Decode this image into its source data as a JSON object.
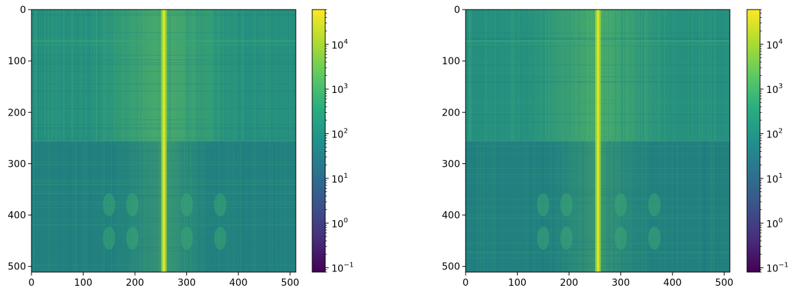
{
  "chart_data": [
    {
      "type": "heatmap",
      "title": "",
      "xlabel": "",
      "ylabel": "",
      "colormap": "viridis",
      "color_scale": "log",
      "image_shape": [
        512,
        512
      ],
      "xlim": [
        0,
        511
      ],
      "ylim": [
        511,
        0
      ],
      "x_ticks": [
        0,
        100,
        200,
        300,
        400,
        500
      ],
      "x_tick_labels": [
        "0",
        "100",
        "200",
        "300",
        "400",
        "500"
      ],
      "y_ticks": [
        0,
        100,
        200,
        300,
        400,
        500
      ],
      "y_tick_labels": [
        "0",
        "100",
        "200",
        "300",
        "400",
        "500"
      ],
      "bright_column_x": 256,
      "step_row_y": 256,
      "colorbar": {
        "scale": "log",
        "range": [
          0.08,
          60000
        ],
        "ticks": [
          {
            "value": 0.1,
            "base": "10",
            "exp": "−1"
          },
          {
            "value": 1,
            "base": "10",
            "exp": "0"
          },
          {
            "value": 10,
            "base": "10",
            "exp": "1"
          },
          {
            "value": 100,
            "base": "10",
            "exp": "2"
          },
          {
            "value": 1000,
            "base": "10",
            "exp": "3"
          },
          {
            "value": 10000,
            "base": "10",
            "exp": "4"
          }
        ]
      }
    },
    {
      "type": "heatmap",
      "title": "",
      "xlabel": "",
      "ylabel": "",
      "colormap": "viridis",
      "color_scale": "log",
      "image_shape": [
        512,
        512
      ],
      "xlim": [
        0,
        511
      ],
      "ylim": [
        511,
        0
      ],
      "x_ticks": [
        0,
        100,
        200,
        300,
        400,
        500
      ],
      "x_tick_labels": [
        "0",
        "100",
        "200",
        "300",
        "400",
        "500"
      ],
      "y_ticks": [
        0,
        100,
        200,
        300,
        400,
        500
      ],
      "y_tick_labels": [
        "0",
        "100",
        "200",
        "300",
        "400",
        "500"
      ],
      "bright_column_x": 256,
      "step_row_y": 256,
      "colorbar": {
        "scale": "log",
        "range": [
          0.08,
          60000
        ],
        "ticks": [
          {
            "value": 0.1,
            "base": "10",
            "exp": "−1"
          },
          {
            "value": 1,
            "base": "10",
            "exp": "0"
          },
          {
            "value": 10,
            "base": "10",
            "exp": "1"
          },
          {
            "value": 100,
            "base": "10",
            "exp": "2"
          },
          {
            "value": 1000,
            "base": "10",
            "exp": "3"
          },
          {
            "value": 10000,
            "base": "10",
            "exp": "4"
          }
        ]
      }
    }
  ]
}
